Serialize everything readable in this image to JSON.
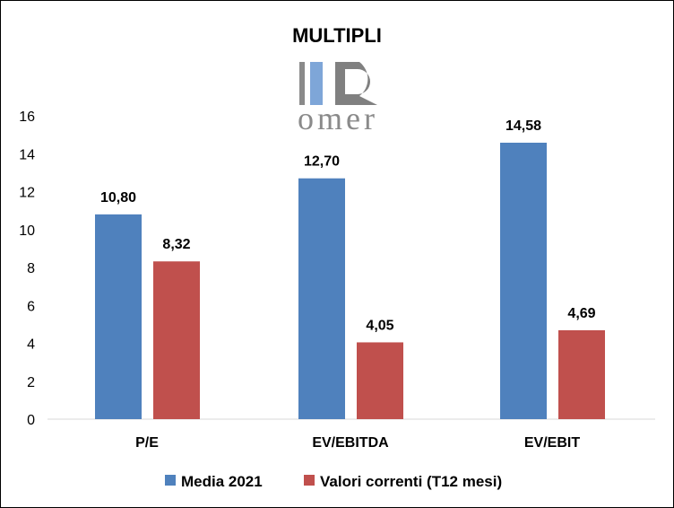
{
  "chart_data": {
    "type": "bar",
    "title": "MULTIPLI",
    "categories": [
      "P/E",
      "EV/EBITDA",
      "EV/EBIT"
    ],
    "series": [
      {
        "name": "Media 2021",
        "color": "#4F81BD",
        "values": [
          10.8,
          12.7,
          14.58
        ],
        "labels": [
          "10,80",
          "12,70",
          "14,58"
        ]
      },
      {
        "name": "Valori correnti (T12 mesi)",
        "color": "#C0504D",
        "values": [
          8.32,
          4.05,
          4.69
        ],
        "labels": [
          "8,32",
          "4,05",
          "4,69"
        ]
      }
    ],
    "ylim": [
      0,
      16
    ],
    "yticks": [
      "0",
      "2",
      "4",
      "6",
      "8",
      "10",
      "12",
      "14",
      "16"
    ],
    "grid": false,
    "legend": "bottom",
    "logo_text": "omer"
  }
}
